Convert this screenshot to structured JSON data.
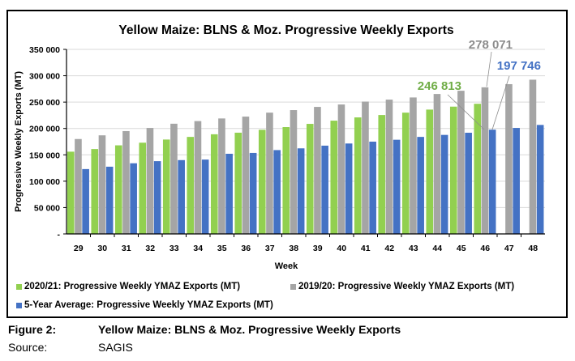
{
  "caption": {
    "figure_label": "Figure 2:",
    "figure_title": "Yellow Maize: BLNS & Moz. Progressive Weekly Exports",
    "source_label": "Source:",
    "source_value": "SAGIS"
  },
  "chart_data": {
    "type": "bar",
    "title": "Yellow Maize: BLNS & Moz. Progressive Weekly Exports",
    "xlabel": "Week",
    "ylabel": "Progressive Weekly Exports (MT)",
    "ylim": [
      0,
      350000
    ],
    "yticks": [
      0,
      50000,
      100000,
      150000,
      200000,
      250000,
      300000,
      350000
    ],
    "ytick_labels": [
      "-",
      "50 000",
      "100 000",
      "150 000",
      "200 000",
      "250 000",
      "300 000",
      "350 000"
    ],
    "grid": true,
    "legend_position": "bottom",
    "categories": [
      "29",
      "30",
      "31",
      "32",
      "33",
      "34",
      "35",
      "36",
      "37",
      "38",
      "39",
      "40",
      "41",
      "42",
      "43",
      "44",
      "45",
      "46",
      "47",
      "48"
    ],
    "series": [
      {
        "name": "2020/21: Progressive Weekly YMAZ Exports (MT)",
        "color": "#92D050",
        "values": [
          156000,
          161000,
          168000,
          173000,
          179000,
          184000,
          189000,
          192000,
          197500,
          202600,
          208700,
          214800,
          221000,
          225500,
          230000,
          235800,
          241400,
          246813,
          null,
          null
        ]
      },
      {
        "name": "2019/20: Progressive Weekly YMAZ Exports (MT)",
        "color": "#A5A5A5",
        "values": [
          180000,
          187000,
          195000,
          201000,
          209000,
          214000,
          219000,
          222500,
          230000,
          234800,
          240900,
          245500,
          251000,
          254700,
          258800,
          265400,
          271500,
          278071,
          284000,
          292500
        ]
      },
      {
        "name": "5-Year Average: Progressive Weekly YMAZ Exports (MT)",
        "color": "#4472C4",
        "values": [
          123000,
          127500,
          134000,
          138000,
          140000,
          141000,
          152000,
          153600,
          159000,
          162300,
          167400,
          171500,
          175000,
          178600,
          184000,
          187800,
          191900,
          197746,
          201000,
          206700
        ]
      }
    ],
    "annotations": [
      {
        "series": 0,
        "category": "46",
        "text": "246 813",
        "color": "#70AD47"
      },
      {
        "series": 1,
        "category": "46",
        "text": "278 071",
        "color": "#8C8C8C"
      },
      {
        "series": 2,
        "category": "46",
        "text": "197 746",
        "color": "#4472C4"
      }
    ]
  }
}
